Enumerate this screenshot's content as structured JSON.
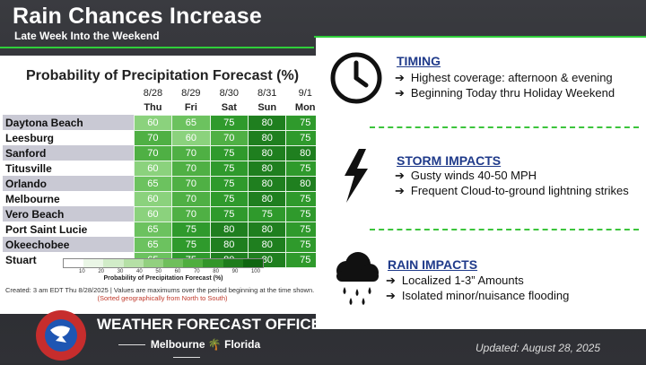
{
  "header": {
    "title": "Rain Chances Increase",
    "subtitle": "Late Week Into the Weekend"
  },
  "chart": {
    "title": "Probability of Precipitation Forecast (%)",
    "dates": [
      "8/28",
      "8/29",
      "8/30",
      "8/31",
      "9/1"
    ],
    "days": [
      "Thu",
      "Fri",
      "Sat",
      "Sun",
      "Mon"
    ],
    "rows": [
      {
        "city": "Daytona Beach",
        "values": [
          "60",
          "65",
          "75",
          "80",
          "75"
        ]
      },
      {
        "city": "Leesburg",
        "values": [
          "70",
          "60",
          "70",
          "80",
          "75"
        ]
      },
      {
        "city": "Sanford",
        "values": [
          "70",
          "70",
          "75",
          "80",
          "80"
        ]
      },
      {
        "city": "Titusville",
        "values": [
          "60",
          "70",
          "75",
          "80",
          "75"
        ]
      },
      {
        "city": "Orlando",
        "values": [
          "65",
          "70",
          "75",
          "80",
          "80"
        ]
      },
      {
        "city": "Melbourne",
        "values": [
          "60",
          "70",
          "75",
          "80",
          "75"
        ]
      },
      {
        "city": "Vero Beach",
        "values": [
          "60",
          "70",
          "75",
          "75",
          "75"
        ]
      },
      {
        "city": "Port Saint Lucie",
        "values": [
          "65",
          "75",
          "80",
          "80",
          "75"
        ]
      },
      {
        "city": "Okeechobee",
        "values": [
          "65",
          "75",
          "80",
          "80",
          "75"
        ]
      },
      {
        "city": "Stuart",
        "values": [
          "65",
          "75",
          "80",
          "80",
          "75"
        ]
      }
    ],
    "legend_ticks": [
      "10",
      "20",
      "30",
      "40",
      "50",
      "60",
      "70",
      "80",
      "90",
      "100"
    ],
    "legend_label": "Probability of Precipitation Forecast (%)",
    "created_note": "Created: 3 am EDT Thu 8/28/2025  |  Values are maximums over the period beginning at the time shown.",
    "sorted_note": "(Sorted geographically from North to South)"
  },
  "timing": {
    "title": "TIMING",
    "bullets": [
      "Highest coverage: afternoon & evening",
      "Beginning Today thru Holiday Weekend"
    ]
  },
  "storm": {
    "title": "STORM IMPACTS",
    "bullets": [
      "Gusty winds 40-50 MPH",
      "Frequent Cloud-to-ground lightning strikes"
    ]
  },
  "rain": {
    "title": "RAIN IMPACTS",
    "bullets": [
      "Localized 1-3” Amounts",
      "Isolated minor/nuisance flooding"
    ]
  },
  "footer": {
    "office": "WEATHER FORECAST OFFICE",
    "location_city": "Melbourne",
    "location_state": "Florida",
    "updated": "Updated: August 28, 2025"
  },
  "colors": {
    "accent_green": "#2fcf3a",
    "heading_blue": "#1f3a8a"
  }
}
